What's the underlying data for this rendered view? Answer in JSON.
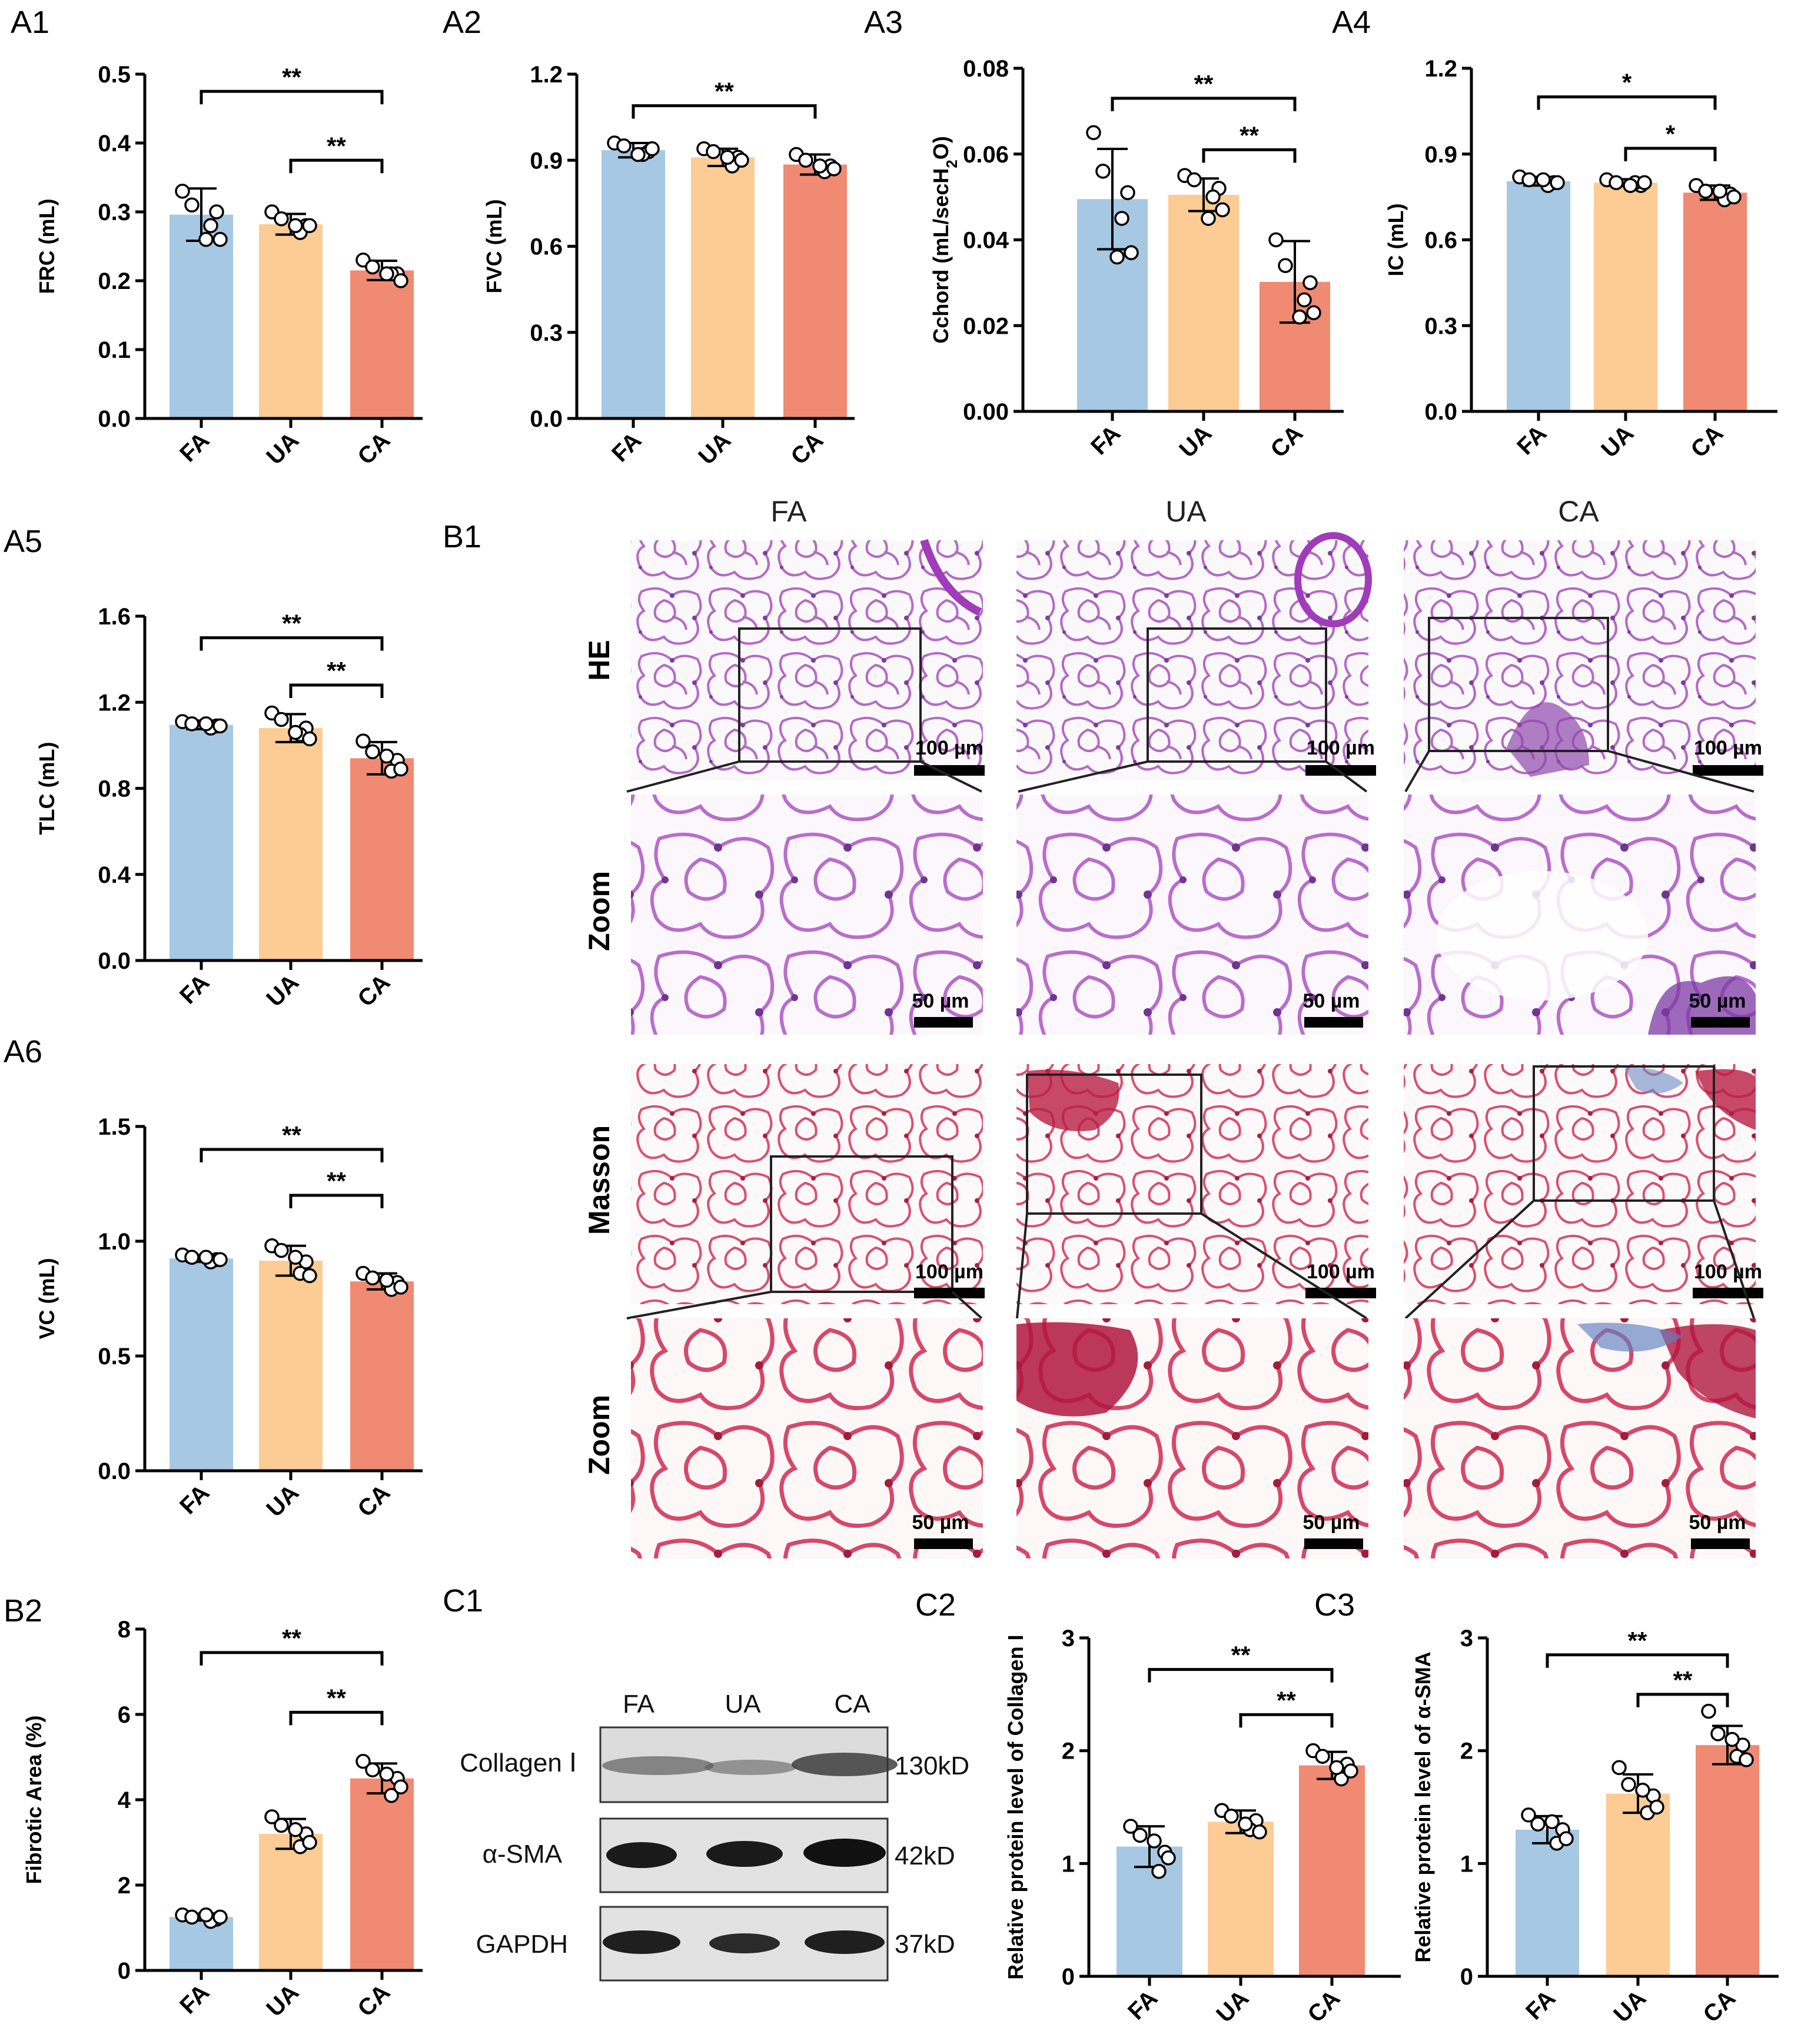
{
  "chart_data": [
    {
      "id": "A1",
      "panel_label": "A1",
      "type": "bar",
      "ylabel": "FRC (mL)",
      "categories": [
        "FA",
        "UA",
        "CA"
      ],
      "ylim": [
        0,
        0.5
      ],
      "yticks": [
        "0.0",
        "0.1",
        "0.2",
        "0.3",
        "0.4",
        "0.5"
      ],
      "values": [
        0.296,
        0.282,
        0.215
      ],
      "errors": [
        0.038,
        0.015,
        0.014
      ],
      "points": [
        [
          0.33,
          0.31,
          0.3,
          0.28,
          0.26,
          0.26
        ],
        [
          0.3,
          0.29,
          0.28,
          0.27,
          0.28,
          0.28
        ],
        [
          0.23,
          0.22,
          0.21,
          0.21,
          0.2,
          0.21
        ]
      ],
      "significance": [
        {
          "from": 0,
          "to": 2,
          "label": "**",
          "y": 0.475
        },
        {
          "from": 1,
          "to": 2,
          "label": "**",
          "y": 0.375
        }
      ]
    },
    {
      "id": "A2",
      "panel_label": "A2",
      "type": "bar",
      "ylabel": "FVC (mL)",
      "categories": [
        "FA",
        "UA",
        "CA"
      ],
      "ylim": [
        0,
        1.2
      ],
      "yticks": [
        "0.0",
        "0.3",
        "0.6",
        "0.9",
        "1.2"
      ],
      "values": [
        0.935,
        0.91,
        0.885
      ],
      "errors": [
        0.025,
        0.03,
        0.035
      ],
      "points": [
        [
          0.96,
          0.95,
          0.93,
          0.92,
          0.94,
          0.92
        ],
        [
          0.94,
          0.93,
          0.91,
          0.88,
          0.9,
          0.91
        ],
        [
          0.92,
          0.9,
          0.88,
          0.86,
          0.87,
          0.88
        ]
      ],
      "significance": [
        {
          "from": 0,
          "to": 2,
          "label": "**",
          "y": 1.09
        }
      ]
    },
    {
      "id": "A3",
      "panel_label": "A3",
      "type": "bar",
      "ylabel": "Cchord (mL/secH2O)",
      "categories": [
        "FA",
        "UA",
        "CA"
      ],
      "ylim": [
        0,
        0.08
      ],
      "yticks": [
        "0.00",
        "0.02",
        "0.04",
        "0.06",
        "0.08"
      ],
      "values": [
        0.0495,
        0.0505,
        0.0302
      ],
      "errors": [
        0.0117,
        0.0038,
        0.0095
      ],
      "points": [
        [
          0.065,
          0.056,
          0.051,
          0.045,
          0.037,
          0.036
        ],
        [
          0.055,
          0.054,
          0.052,
          0.05,
          0.047,
          0.045
        ],
        [
          0.04,
          0.034,
          0.03,
          0.026,
          0.023,
          0.022
        ]
      ],
      "significance": [
        {
          "from": 0,
          "to": 2,
          "label": "**",
          "y": 0.073
        },
        {
          "from": 1,
          "to": 2,
          "label": "**",
          "y": 0.061
        }
      ]
    },
    {
      "id": "A4",
      "panel_label": "A4",
      "type": "bar",
      "ylabel": "IC (mL)",
      "categories": [
        "FA",
        "UA",
        "CA"
      ],
      "ylim": [
        0,
        1.2
      ],
      "yticks": [
        "0.0",
        "0.3",
        "0.6",
        "0.9",
        "1.2"
      ],
      "values": [
        0.805,
        0.8,
        0.765
      ],
      "errors": [
        0.015,
        0.012,
        0.025
      ],
      "points": [
        [
          0.82,
          0.81,
          0.8,
          0.79,
          0.8,
          0.81
        ],
        [
          0.81,
          0.8,
          0.79,
          0.8,
          0.8,
          0.79
        ],
        [
          0.79,
          0.77,
          0.76,
          0.74,
          0.75,
          0.77
        ]
      ],
      "significance": [
        {
          "from": 0,
          "to": 2,
          "label": "*",
          "y": 1.1
        },
        {
          "from": 1,
          "to": 2,
          "label": "*",
          "y": 0.92
        }
      ]
    },
    {
      "id": "A5",
      "panel_label": "A5",
      "type": "bar",
      "ylabel": "TLC (mL)",
      "categories": [
        "FA",
        "UA",
        "CA"
      ],
      "ylim": [
        0,
        1.6
      ],
      "yticks": [
        "0.0",
        "0.4",
        "0.8",
        "1.2",
        "1.6"
      ],
      "values": [
        1.095,
        1.08,
        0.94
      ],
      "errors": [
        0.02,
        0.065,
        0.075
      ],
      "points": [
        [
          1.11,
          1.1,
          1.09,
          1.08,
          1.09,
          1.1
        ],
        [
          1.15,
          1.12,
          1.08,
          1.05,
          1.03,
          1.06
        ],
        [
          1.02,
          0.97,
          0.93,
          0.88,
          0.89,
          0.95
        ]
      ],
      "significance": [
        {
          "from": 0,
          "to": 2,
          "label": "**",
          "y": 1.5
        },
        {
          "from": 1,
          "to": 2,
          "label": "**",
          "y": 1.28
        }
      ]
    },
    {
      "id": "A6",
      "panel_label": "A6",
      "type": "bar",
      "ylabel": "VC (mL)",
      "categories": [
        "FA",
        "UA",
        "CA"
      ],
      "ylim": [
        0,
        1.5
      ],
      "yticks": [
        "0.0",
        "0.5",
        "1.0",
        "1.5"
      ],
      "values": [
        0.925,
        0.915,
        0.825
      ],
      "errors": [
        0.015,
        0.065,
        0.035
      ],
      "points": [
        [
          0.94,
          0.93,
          0.92,
          0.91,
          0.92,
          0.93
        ],
        [
          0.98,
          0.96,
          0.91,
          0.86,
          0.85,
          0.93
        ],
        [
          0.86,
          0.84,
          0.82,
          0.79,
          0.8,
          0.83
        ]
      ],
      "significance": [
        {
          "from": 0,
          "to": 2,
          "label": "**",
          "y": 1.4
        },
        {
          "from": 1,
          "to": 2,
          "label": "**",
          "y": 1.2
        }
      ]
    },
    {
      "id": "B2",
      "panel_label": "B2",
      "type": "bar",
      "ylabel": "Fibrotic Area (%)",
      "categories": [
        "FA",
        "UA",
        "CA"
      ],
      "ylim": [
        0,
        8
      ],
      "yticks": [
        "0",
        "2",
        "4",
        "6",
        "8"
      ],
      "values": [
        1.25,
        3.2,
        4.5
      ],
      "errors": [
        0.08,
        0.35,
        0.35
      ],
      "points": [
        [
          1.3,
          1.25,
          1.2,
          1.15,
          1.25,
          1.3
        ],
        [
          3.6,
          3.4,
          3.2,
          2.9,
          3.0,
          3.3
        ],
        [
          4.9,
          4.7,
          4.5,
          4.1,
          4.3,
          4.6
        ]
      ],
      "significance": [
        {
          "from": 0,
          "to": 2,
          "label": "**",
          "y": 7.45
        },
        {
          "from": 1,
          "to": 2,
          "label": "**",
          "y": 6.05
        }
      ]
    },
    {
      "id": "C2",
      "panel_label": "C2",
      "type": "bar",
      "ylabel": "Relative protein level of Collagen I",
      "categories": [
        "FA",
        "UA",
        "CA"
      ],
      "ylim": [
        0,
        3
      ],
      "yticks": [
        "0",
        "1",
        "2",
        "3"
      ],
      "values": [
        1.15,
        1.37,
        1.87
      ],
      "errors": [
        0.18,
        0.1,
        0.12
      ],
      "points": [
        [
          1.33,
          1.25,
          1.1,
          0.93,
          1.05,
          1.2
        ],
        [
          1.47,
          1.42,
          1.38,
          1.3,
          1.28,
          1.35
        ],
        [
          2.0,
          1.95,
          1.88,
          1.75,
          1.82,
          1.85
        ]
      ],
      "significance": [
        {
          "from": 0,
          "to": 2,
          "label": "**",
          "y": 2.72
        },
        {
          "from": 1,
          "to": 2,
          "label": "**",
          "y": 2.32
        }
      ]
    },
    {
      "id": "C3",
      "panel_label": "C3",
      "type": "bar",
      "ylabel": "Relative protein level of α-SMA",
      "categories": [
        "FA",
        "UA",
        "CA"
      ],
      "ylim": [
        0,
        3
      ],
      "yticks": [
        "0",
        "1",
        "2",
        "3"
      ],
      "values": [
        1.3,
        1.62,
        2.05
      ],
      "errors": [
        0.12,
        0.17,
        0.17
      ],
      "points": [
        [
          1.43,
          1.35,
          1.3,
          1.18,
          1.22,
          1.37
        ],
        [
          1.85,
          1.7,
          1.6,
          1.45,
          1.5,
          1.65
        ],
        [
          2.35,
          2.15,
          2.05,
          1.95,
          1.92,
          2.1
        ]
      ],
      "significance": [
        {
          "from": 0,
          "to": 2,
          "label": "**",
          "y": 2.85
        },
        {
          "from": 1,
          "to": 2,
          "label": "**",
          "y": 2.5
        }
      ]
    }
  ],
  "colors": {
    "FA": "#a6c8e3",
    "UA": "#fdcb94",
    "CA": "#f08a72"
  },
  "histology": {
    "panel_label": "B1",
    "columns": [
      "FA",
      "UA",
      "CA"
    ],
    "rows": [
      "HE",
      "Zoom",
      "Masson",
      "Zoom"
    ],
    "scale_large": "100 µm",
    "scale_small": "50 µm"
  },
  "western": {
    "panel_label": "C1",
    "lanes": [
      "FA",
      "UA",
      "CA"
    ],
    "bands": [
      {
        "name": "Collagen Ⅰ",
        "size": "130kD"
      },
      {
        "name": "α-SMA",
        "size": "42kD"
      },
      {
        "name": "GAPDH",
        "size": "37kD"
      }
    ]
  }
}
